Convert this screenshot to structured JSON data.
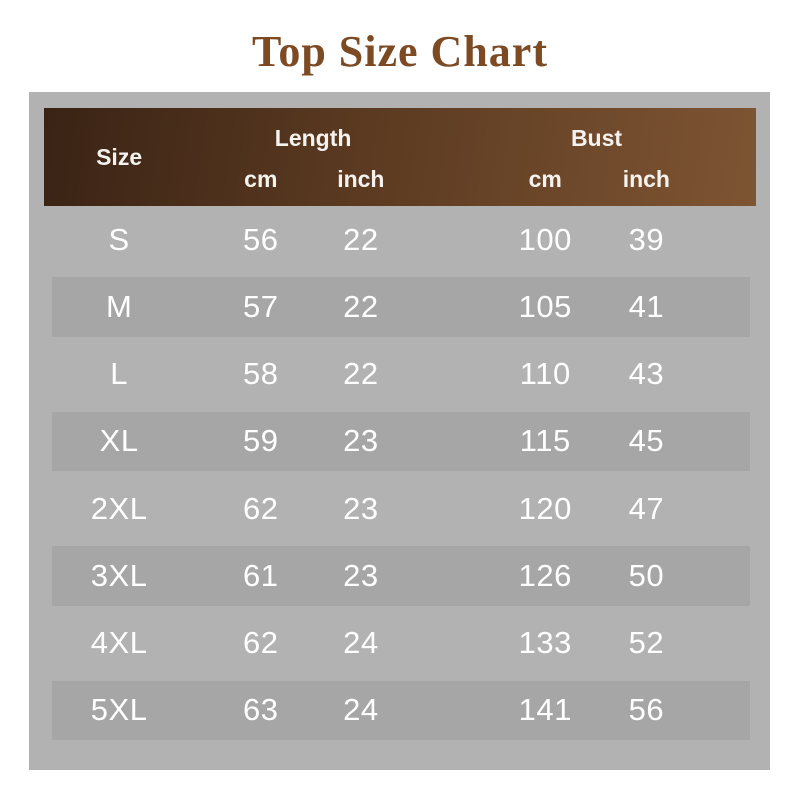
{
  "title": "Top Size Chart",
  "header": {
    "size": "Size",
    "length_group": "Length",
    "bust_group": "Bust",
    "length_cm": "cm",
    "length_inch": "inch",
    "bust_cm": "cm",
    "bust_inch": "inch"
  },
  "chart_data": {
    "type": "table",
    "title": "Top Size Chart",
    "columns": [
      "Size",
      "Length cm",
      "Length inch",
      "Bust cm",
      "Bust inch"
    ],
    "rows": [
      [
        "S",
        "56",
        "22",
        "100",
        "39"
      ],
      [
        "M",
        "57",
        "22",
        "105",
        "41"
      ],
      [
        "L",
        "58",
        "22",
        "110",
        "43"
      ],
      [
        "XL",
        "59",
        "23",
        "115",
        "45"
      ],
      [
        "2XL",
        "62",
        "23",
        "120",
        "47"
      ],
      [
        "3XL",
        "61",
        "23",
        "126",
        "50"
      ],
      [
        "4XL",
        "62",
        "24",
        "133",
        "52"
      ],
      [
        "5XL",
        "63",
        "24",
        "141",
        "56"
      ]
    ]
  },
  "colors": {
    "page_bg": "#ffffff",
    "panel_bg": "#b2b2b2",
    "row_stripe": "#a6a6a6",
    "header_grad_start": "#3a2315",
    "header_grad_mid": "#5b3a21",
    "header_grad_end": "#7e5533",
    "header_text": "#f6f3ef",
    "row_text": "#ffffff",
    "title_text": "#7c4a23"
  }
}
